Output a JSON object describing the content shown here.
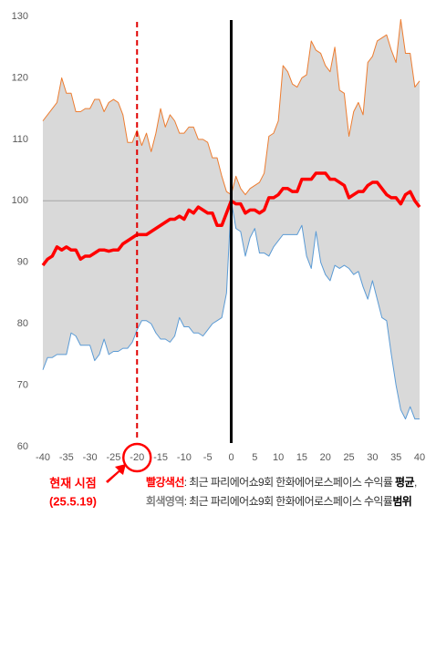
{
  "chart_data": {
    "type": "range-line",
    "x": [
      -40,
      -39,
      -38,
      -37,
      -36,
      -35,
      -34,
      -33,
      -32,
      -31,
      -30,
      -29,
      -28,
      -27,
      -26,
      -25,
      -24,
      -23,
      -22,
      -21,
      -20,
      -19,
      -18,
      -17,
      -16,
      -15,
      -14,
      -13,
      -12,
      -11,
      -10,
      -9,
      -8,
      -7,
      -6,
      -5,
      -4,
      -3,
      -2,
      -1,
      0,
      1,
      2,
      3,
      4,
      5,
      6,
      7,
      8,
      9,
      10,
      11,
      12,
      13,
      14,
      15,
      16,
      17,
      18,
      19,
      20,
      21,
      22,
      23,
      24,
      25,
      26,
      27,
      28,
      29,
      30,
      31,
      32,
      33,
      34,
      35,
      36,
      37,
      38,
      39,
      40
    ],
    "series": [
      {
        "color": "#ed7d31",
        "values": [
          113,
          114,
          115,
          116,
          120,
          117.5,
          117.5,
          114.5,
          114.5,
          115,
          115,
          116.5,
          116.5,
          114.5,
          116,
          116.5,
          116,
          114,
          109.5,
          109.5,
          111.5,
          109,
          111,
          108,
          111,
          115,
          112,
          114,
          113,
          111,
          111,
          112,
          112,
          110,
          110,
          109.5,
          107,
          107,
          104,
          101.5,
          101,
          104,
          102,
          101,
          102,
          102.5,
          103,
          104.5,
          110.5,
          111,
          113,
          122,
          121,
          119,
          118.5,
          120,
          120.5,
          126,
          124.5,
          124,
          122,
          121,
          125,
          118,
          117.5,
          110.5,
          114.5,
          116,
          114,
          122.5,
          123.5,
          126,
          126.5,
          127,
          124.5,
          122.5,
          129.5,
          124,
          124,
          118.5,
          119.5
        ]
      },
      {
        "color": "#5b9bd5",
        "values": [
          72.5,
          74.5,
          74.5,
          75,
          75,
          75,
          78.5,
          78,
          76.5,
          76.5,
          76.5,
          74,
          75,
          77.5,
          75,
          75.5,
          75.5,
          76,
          76,
          77,
          79,
          80.5,
          80.5,
          80,
          78.5,
          77.5,
          77.5,
          77,
          78,
          81,
          79.5,
          79.5,
          78.5,
          78.5,
          78,
          79,
          80,
          80.5,
          81,
          85,
          100,
          95.5,
          95,
          91,
          94,
          95.5,
          91.5,
          91.5,
          91,
          92.5,
          93.5,
          94.5,
          94.5,
          94.5,
          94.5,
          96,
          91,
          89,
          95,
          90,
          88,
          87,
          89.5,
          89,
          89.5,
          89,
          88,
          88.5,
          86,
          84,
          87,
          84,
          81,
          80.5,
          75,
          70,
          66,
          64.5,
          66.5,
          64.5,
          64.5
        ]
      },
      {
        "color": "#ff0000",
        "values": [
          89.5,
          90.5,
          91,
          92.5,
          92,
          92.5,
          92,
          92,
          90.5,
          91,
          91,
          91.5,
          92,
          92,
          91.8,
          92,
          92,
          93,
          93.5,
          94,
          94.5,
          94.5,
          94.5,
          95,
          95.5,
          96,
          96.5,
          97,
          97,
          97.5,
          97,
          98.5,
          98,
          99,
          98.5,
          98,
          98,
          96,
          96,
          98,
          100,
          99.5,
          99.5,
          98,
          98.5,
          98.5,
          98,
          98.5,
          100.5,
          100.5,
          101,
          102,
          102,
          101.5,
          101.5,
          103.5,
          103.5,
          103.5,
          104.5,
          104.5,
          104.5,
          103.5,
          103.5,
          103,
          102.5,
          100.5,
          101,
          101.5,
          101.5,
          102.5,
          103,
          103,
          102,
          101,
          100.5,
          100.5,
          99.5,
          101,
          101.5,
          100,
          99
        ]
      }
    ],
    "fill_color": "#d9d9d9",
    "xlim": [
      -40,
      40
    ],
    "xticks": [
      -40,
      -35,
      -30,
      -25,
      -20,
      -15,
      -10,
      -5,
      0,
      5,
      10,
      15,
      20,
      25,
      30,
      35,
      40
    ],
    "ylim": [
      60,
      130
    ],
    "yticks": [
      60,
      70,
      80,
      90,
      100,
      110,
      120,
      130
    ],
    "reference_y": 100,
    "event_x": 0,
    "current_x": -20,
    "current_label": [
      "현재 시점",
      "(25.5.19)"
    ],
    "legend": [
      [
        "빨강색선",
        ": 최근 파리에어쇼9회 한화에어로스페이스 수익률 ",
        "평균",
        ","
      ],
      [
        "회색영역",
        ": 최근 파리에어쇼9회 한화에어로스페이스 수익률",
        "범위"
      ]
    ]
  }
}
